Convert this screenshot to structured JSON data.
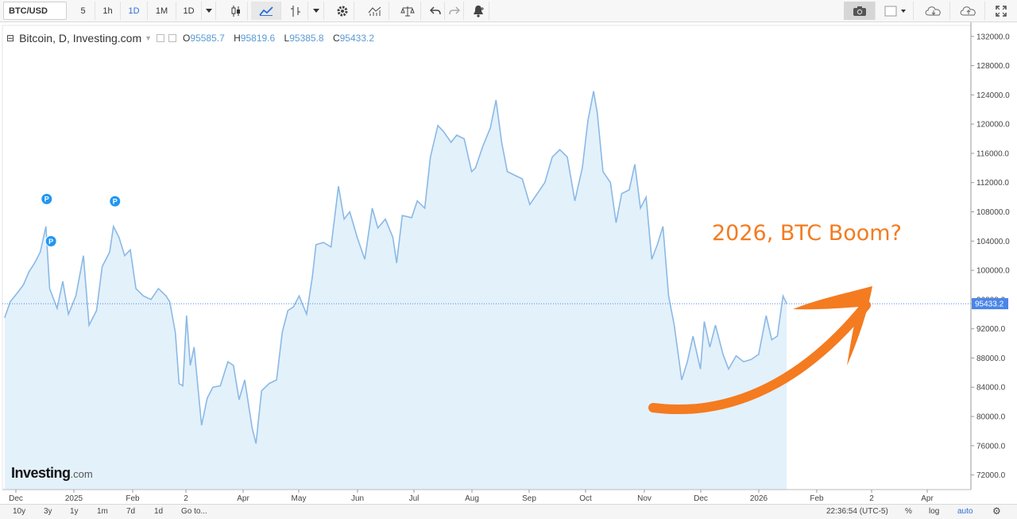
{
  "toolbar": {
    "symbol": "BTC/USD",
    "intervals": [
      "5",
      "1h",
      "1D",
      "1M",
      "1D"
    ],
    "active_interval_index": 2,
    "icons": [
      "candles-icon",
      "line-chart-icon",
      "bars-icon",
      "settings-icon",
      "indicators-icon",
      "balance-icon",
      "undo-icon",
      "redo-icon",
      "alert-icon"
    ],
    "right_icons": [
      "camera-icon",
      "color-box-icon",
      "cloud-download-icon",
      "cloud-upload-icon",
      "fullscreen-icon"
    ]
  },
  "legend": {
    "title": "Bitcoin, D, Investing.com",
    "open_label": "O",
    "open": "95585.7",
    "high_label": "H",
    "high": "95819.6",
    "low_label": "L",
    "low": "95385.8",
    "close_label": "C",
    "close": "95433.2"
  },
  "annotation": "2026, BTC Boom?",
  "logo": {
    "main": "Investing",
    "suffix": ".com"
  },
  "bottom_bar": {
    "ranges": [
      "10y",
      "3y",
      "1y",
      "1m",
      "7d",
      "1d"
    ],
    "goto": "Go to...",
    "time": "22:36:54 (UTC-5)",
    "percent": "%",
    "log": "log",
    "auto": "auto"
  },
  "colors": {
    "line": "#8ab9e6",
    "area": "#e3f1fb",
    "last_price_badge": "#4a86e8",
    "annotation": "#f47b20",
    "marker": "#2196f3"
  },
  "chart_data": {
    "type": "area",
    "title": "Bitcoin, D, Investing.com",
    "xlabel": "",
    "ylabel": "",
    "x_tick_labels": [
      "Dec",
      "2025",
      "Feb",
      "2",
      "Apr",
      "May",
      "Jun",
      "Jul",
      "Aug",
      "Sep",
      "Oct",
      "Nov",
      "Dec",
      "2026",
      "Feb",
      "2",
      "Apr"
    ],
    "y_ticks": [
      72000,
      76000,
      80000,
      84000,
      88000,
      92000,
      96000,
      100000,
      104000,
      108000,
      112000,
      116000,
      120000,
      124000,
      128000,
      132000
    ],
    "y_tick_labels": [
      "72000.0",
      "76000.0",
      "80000.0",
      "84000.0",
      "88000.0",
      "92000.0",
      "96000.0",
      "100000.0",
      "104000.0",
      "108000.0",
      "112000.0",
      "116000.0",
      "120000.0",
      "124000.0",
      "128000.0",
      "132000.0"
    ],
    "ylim": [
      70000,
      133500
    ],
    "last_price": 95433.2,
    "last_price_label": "95433.2",
    "markers": [
      {
        "date": "2024-12-17",
        "label": "P",
        "value": 107800
      },
      {
        "date": "2024-12-18",
        "label": "P",
        "value": 104200
      },
      {
        "date": "2025-01-22",
        "label": "P",
        "value": 107700
      }
    ],
    "series": [
      {
        "values": [
          [
            "2024-11-25",
            93500
          ],
          [
            "2024-11-28",
            95700
          ],
          [
            "2024-12-02",
            97000
          ],
          [
            "2024-12-05",
            98000
          ],
          [
            "2024-12-08",
            99800
          ],
          [
            "2024-12-11",
            101000
          ],
          [
            "2024-12-14",
            102500
          ],
          [
            "2024-12-17",
            106000
          ],
          [
            "2024-12-19",
            97500
          ],
          [
            "2024-12-23",
            94800
          ],
          [
            "2024-12-26",
            98500
          ],
          [
            "2024-12-29",
            94000
          ],
          [
            "2025-01-02",
            96500
          ],
          [
            "2025-01-06",
            102000
          ],
          [
            "2025-01-09",
            92500
          ],
          [
            "2025-01-13",
            94500
          ],
          [
            "2025-01-16",
            100500
          ],
          [
            "2025-01-20",
            102500
          ],
          [
            "2025-01-22",
            106000
          ],
          [
            "2025-01-25",
            104500
          ],
          [
            "2025-01-28",
            102000
          ],
          [
            "2025-01-31",
            102800
          ],
          [
            "2025-02-03",
            97500
          ],
          [
            "2025-02-07",
            96500
          ],
          [
            "2025-02-11",
            96000
          ],
          [
            "2025-02-15",
            97500
          ],
          [
            "2025-02-19",
            96500
          ],
          [
            "2025-02-21",
            95700
          ],
          [
            "2025-02-24",
            91500
          ],
          [
            "2025-02-26",
            84500
          ],
          [
            "2025-02-28",
            84200
          ],
          [
            "2025-03-02",
            93800
          ],
          [
            "2025-03-04",
            87000
          ],
          [
            "2025-03-06",
            89500
          ],
          [
            "2025-03-10",
            78800
          ],
          [
            "2025-03-13",
            82500
          ],
          [
            "2025-03-16",
            84000
          ],
          [
            "2025-03-20",
            84200
          ],
          [
            "2025-03-24",
            87500
          ],
          [
            "2025-03-27",
            87000
          ],
          [
            "2025-03-30",
            82300
          ],
          [
            "2025-04-02",
            85000
          ],
          [
            "2025-04-06",
            78400
          ],
          [
            "2025-04-08",
            76300
          ],
          [
            "2025-04-11",
            83500
          ],
          [
            "2025-04-15",
            84500
          ],
          [
            "2025-04-19",
            85000
          ],
          [
            "2025-04-22",
            91500
          ],
          [
            "2025-04-25",
            94500
          ],
          [
            "2025-04-28",
            95000
          ],
          [
            "2025-05-01",
            96500
          ],
          [
            "2025-05-05",
            94000
          ],
          [
            "2025-05-08",
            99000
          ],
          [
            "2025-05-10",
            103500
          ],
          [
            "2025-05-14",
            103800
          ],
          [
            "2025-05-18",
            103200
          ],
          [
            "2025-05-22",
            111500
          ],
          [
            "2025-05-25",
            107000
          ],
          [
            "2025-05-28",
            108000
          ],
          [
            "2025-06-01",
            104500
          ],
          [
            "2025-06-05",
            101500
          ],
          [
            "2025-06-09",
            108500
          ],
          [
            "2025-06-12",
            105800
          ],
          [
            "2025-06-16",
            107000
          ],
          [
            "2025-06-20",
            104500
          ],
          [
            "2025-06-22",
            101000
          ],
          [
            "2025-06-25",
            107500
          ],
          [
            "2025-06-30",
            107200
          ],
          [
            "2025-07-03",
            109500
          ],
          [
            "2025-07-07",
            108500
          ],
          [
            "2025-07-10",
            115500
          ],
          [
            "2025-07-14",
            119800
          ],
          [
            "2025-07-17",
            119000
          ],
          [
            "2025-07-21",
            117500
          ],
          [
            "2025-07-24",
            118500
          ],
          [
            "2025-07-28",
            118000
          ],
          [
            "2025-08-01",
            113500
          ],
          [
            "2025-08-03",
            114000
          ],
          [
            "2025-08-07",
            117000
          ],
          [
            "2025-08-11",
            119500
          ],
          [
            "2025-08-14",
            123300
          ],
          [
            "2025-08-17",
            117500
          ],
          [
            "2025-08-20",
            113500
          ],
          [
            "2025-08-24",
            113000
          ],
          [
            "2025-08-28",
            112500
          ],
          [
            "2025-09-01",
            109000
          ],
          [
            "2025-09-05",
            110500
          ],
          [
            "2025-09-09",
            112000
          ],
          [
            "2025-09-13",
            115500
          ],
          [
            "2025-09-17",
            116500
          ],
          [
            "2025-09-21",
            115500
          ],
          [
            "2025-09-25",
            109500
          ],
          [
            "2025-09-29",
            114000
          ],
          [
            "2025-10-02",
            120500
          ],
          [
            "2025-10-05",
            124500
          ],
          [
            "2025-10-07",
            121500
          ],
          [
            "2025-10-10",
            113500
          ],
          [
            "2025-10-14",
            112000
          ],
          [
            "2025-10-17",
            106500
          ],
          [
            "2025-10-20",
            110500
          ],
          [
            "2025-10-24",
            111000
          ],
          [
            "2025-10-27",
            114500
          ],
          [
            "2025-10-30",
            108500
          ],
          [
            "2025-11-02",
            110000
          ],
          [
            "2025-11-05",
            101500
          ],
          [
            "2025-11-08",
            103500
          ],
          [
            "2025-11-11",
            106000
          ],
          [
            "2025-11-14",
            96500
          ],
          [
            "2025-11-17",
            92500
          ],
          [
            "2025-11-21",
            85000
          ],
          [
            "2025-11-24",
            87500
          ],
          [
            "2025-11-27",
            91000
          ],
          [
            "2025-12-01",
            86500
          ],
          [
            "2025-12-03",
            93000
          ],
          [
            "2025-12-06",
            89500
          ],
          [
            "2025-12-09",
            92500
          ],
          [
            "2025-12-13",
            88500
          ],
          [
            "2025-12-16",
            86500
          ],
          [
            "2025-12-20",
            88300
          ],
          [
            "2025-12-24",
            87500
          ],
          [
            "2025-12-28",
            87800
          ],
          [
            "2026-01-01",
            88500
          ],
          [
            "2026-01-05",
            93800
          ],
          [
            "2026-01-08",
            90500
          ],
          [
            "2026-01-11",
            91000
          ],
          [
            "2026-01-14",
            96500
          ],
          [
            "2026-01-16",
            95433.2
          ]
        ]
      }
    ]
  }
}
